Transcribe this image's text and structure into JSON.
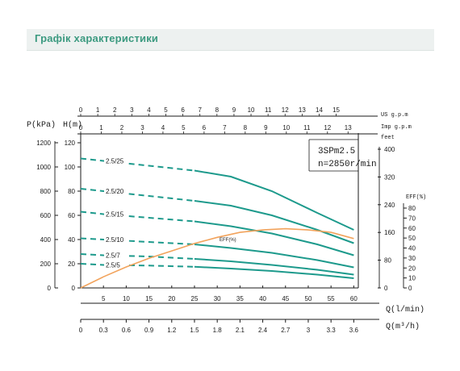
{
  "header": {
    "title": "Графік характеристики"
  },
  "colors": {
    "header_text": "#3c9a80",
    "header_band": "#edf1f0",
    "curve": "#1d9a8c",
    "eff": "#f2a35c",
    "axis": "#1a1a1a"
  },
  "chart_data": {
    "type": "line",
    "model_label": "3SPm2.5",
    "speed_label": "n=2850r/min",
    "axes": {
      "us_gpm": {
        "label": "US g.p.m",
        "ticks": [
          "0",
          "1",
          "2",
          "3",
          "4",
          "5",
          "6",
          "7",
          "8",
          "9",
          "10",
          "11",
          "12",
          "13",
          "14",
          "15"
        ],
        "max": 16.3
      },
      "imp_gpm": {
        "label": "Imp g.p.m",
        "ticks": [
          "0",
          "1",
          "2",
          "3",
          "4",
          "5",
          "6",
          "7",
          "8",
          "9",
          "10",
          "11",
          "12",
          "13"
        ],
        "max": 13.5
      },
      "q_lmin": {
        "label": "Q(l/min)",
        "ticks": [
          "5",
          "10",
          "15",
          "20",
          "25",
          "30",
          "35",
          "40",
          "45",
          "50",
          "55",
          "60"
        ],
        "range": [
          0,
          61
        ]
      },
      "q_m3h": {
        "label": "Q(m³/h)",
        "ticks": [
          "0",
          "0.3",
          "0.6",
          "0.9",
          "1.2",
          "1.5",
          "1.8",
          "2.1",
          "2.4",
          "2.7",
          "3",
          "3.3",
          "3.6"
        ],
        "max": 3.66
      },
      "pressure": {
        "label": "P(kPa)",
        "ticks": [
          "0",
          "200",
          "400",
          "600",
          "800",
          "1000",
          "1200"
        ],
        "range": [
          0,
          1200
        ]
      },
      "head_m": {
        "label": "H(m)",
        "ticks": [
          "0",
          "20",
          "40",
          "60",
          "80",
          "100",
          "120"
        ],
        "range": [
          0,
          120
        ]
      },
      "head_feet": {
        "label": "feet",
        "ticks": [
          "0",
          "80",
          "160",
          "240",
          "320",
          "400"
        ],
        "range": [
          0,
          400
        ]
      },
      "efficiency": {
        "label": "EFF(%)",
        "ticks": [
          "0",
          "10",
          "20",
          "30",
          "40",
          "50",
          "60",
          "70",
          "80"
        ],
        "range": [
          0,
          80
        ]
      }
    },
    "series": [
      {
        "name": "2.5/25",
        "x": [
          0,
          5,
          15,
          25,
          33,
          42,
          52,
          60
        ],
        "y": [
          107,
          105,
          101,
          97,
          92,
          80,
          62,
          48
        ]
      },
      {
        "name": "2.5/20",
        "x": [
          0,
          5,
          15,
          25,
          33,
          42,
          52,
          60
        ],
        "y": [
          82,
          80,
          76,
          72,
          68,
          60,
          48,
          37
        ]
      },
      {
        "name": "2.5/15",
        "x": [
          0,
          5,
          15,
          25,
          33,
          42,
          52,
          60
        ],
        "y": [
          63,
          61,
          58,
          55,
          51,
          45,
          36,
          27
        ]
      },
      {
        "name": "2.5/10",
        "x": [
          0,
          5,
          15,
          25,
          33,
          42,
          52,
          60
        ],
        "y": [
          41,
          40,
          38,
          36,
          33,
          29,
          23,
          17
        ]
      },
      {
        "name": "2.5/7",
        "x": [
          0,
          5,
          15,
          25,
          33,
          42,
          52,
          60
        ],
        "y": [
          28,
          27,
          26,
          24,
          22,
          19,
          15,
          11
        ]
      },
      {
        "name": "2.5/5",
        "x": [
          0,
          5,
          15,
          25,
          33,
          42,
          52,
          60
        ],
        "y": [
          20,
          19,
          18.5,
          17.5,
          16,
          14,
          11,
          8
        ]
      }
    ],
    "efficiency_curve": {
      "label": "EFF(%)",
      "x": [
        0,
        5,
        10,
        15,
        20,
        25,
        30,
        35,
        40,
        45,
        50,
        55,
        60
      ],
      "y": [
        0,
        9,
        17,
        24,
        30,
        36,
        41,
        45,
        47,
        48,
        47,
        45,
        40
      ]
    }
  }
}
